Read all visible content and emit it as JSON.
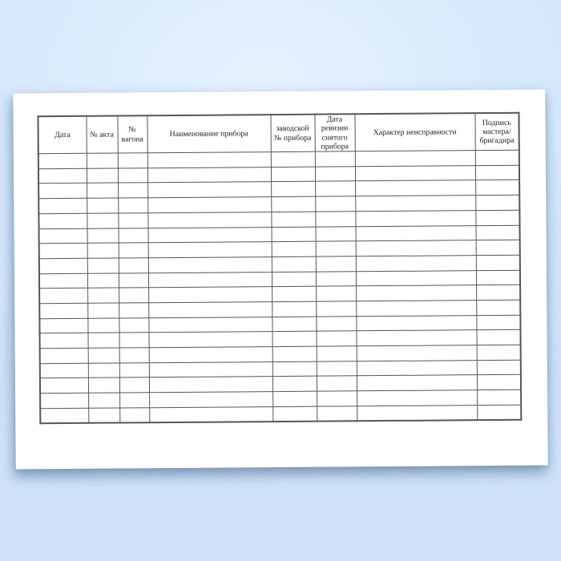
{
  "page": {
    "background_color": "#d6e8fb",
    "paper_color": "#ffffff"
  },
  "table": {
    "border_color": "#565656",
    "columns": [
      {
        "label": "Дата"
      },
      {
        "label": "№ акта"
      },
      {
        "label": "№ вагона"
      },
      {
        "label": "Наименование прибора"
      },
      {
        "label": "заводской № прибора"
      },
      {
        "label": "Дата ревизии снятого прибора"
      },
      {
        "label": "Характер неисправности"
      },
      {
        "label": "Подпись мастера/бригадира"
      }
    ],
    "row_count": 18,
    "cell_value": ""
  }
}
